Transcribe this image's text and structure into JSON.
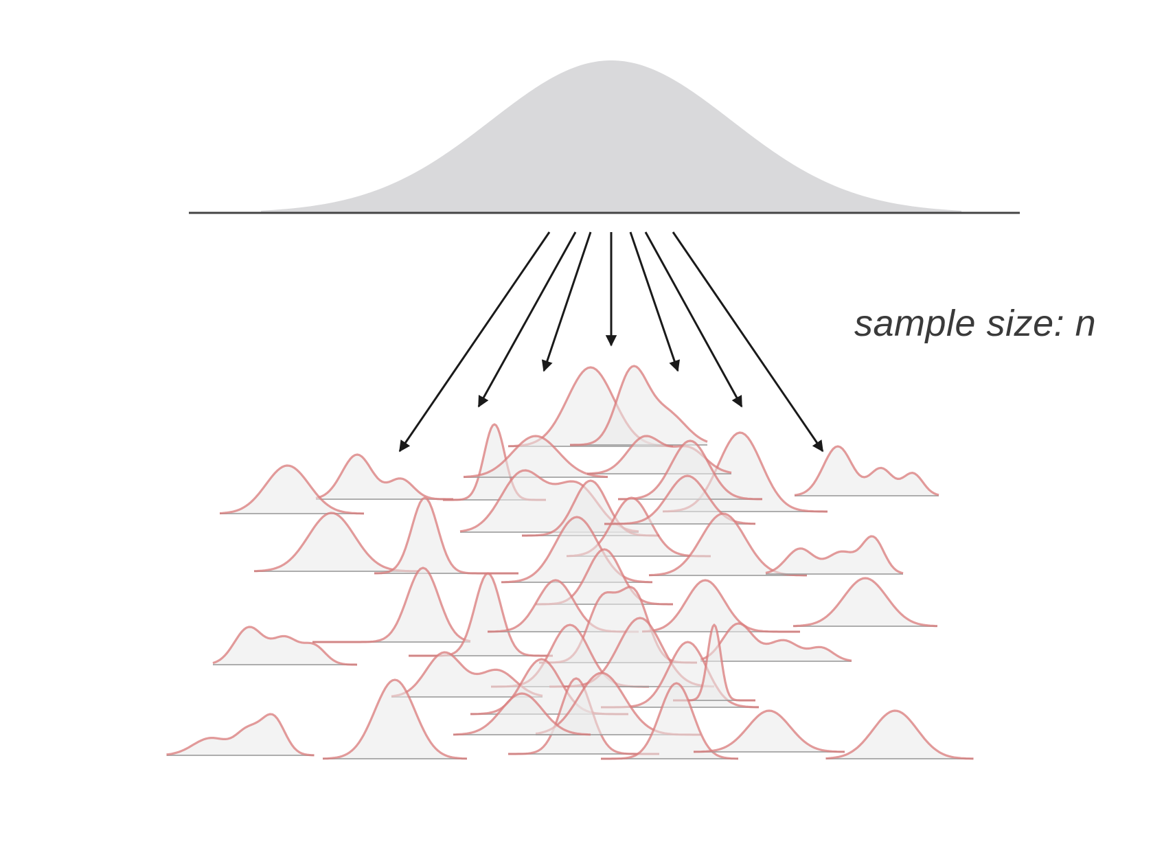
{
  "label": {
    "text": "sample size: n"
  },
  "colors": {
    "population_fill": "#d9d9db",
    "baseline": "#444444",
    "arrow": "#1a1a1a",
    "sample_stroke": "#d97a7a",
    "sample_fill": "#e9e9e9",
    "sample_baseline": "#9a9a9a",
    "text": "#3a3a3a"
  }
}
